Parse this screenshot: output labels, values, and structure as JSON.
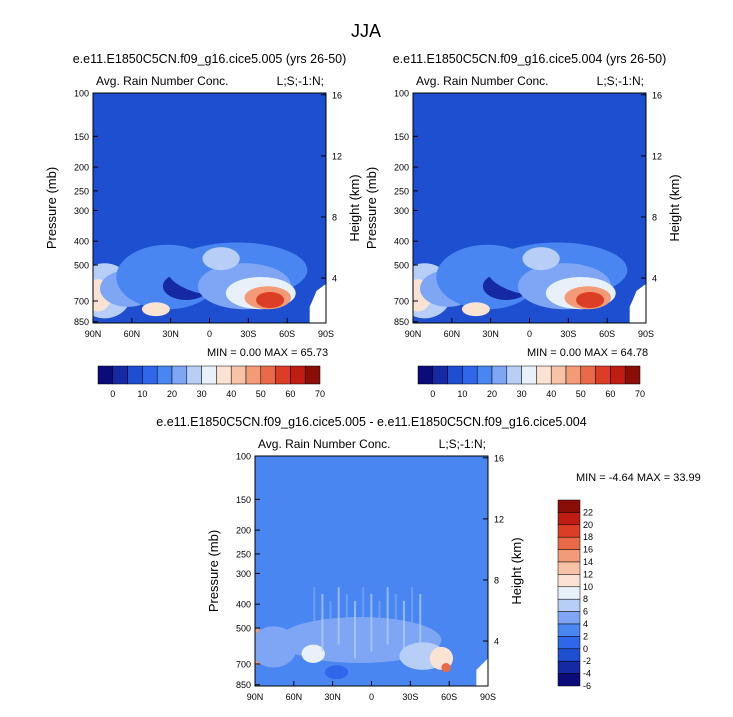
{
  "figure": {
    "title": "JJA"
  },
  "colors": {
    "fill_scale": [
      "#0b0c7a",
      "#1429a3",
      "#1f4fd1",
      "#2f66ea",
      "#4a86f2",
      "#7ea6f4",
      "#b7cff7",
      "#e8f0fa",
      "#fbe3d4",
      "#f7c2a6",
      "#f39a76",
      "#ea6a48",
      "#dc3d25",
      "#c01c12",
      "#8b0d08"
    ],
    "diff_scale": [
      "#0b0c7a",
      "#1429a3",
      "#1f4fd1",
      "#2f66ea",
      "#4a86f2",
      "#7ea6f4",
      "#b7cff7",
      "#e8f0fa",
      "#fbe3d4",
      "#f7c2a6",
      "#f39a76",
      "#ea6a48",
      "#dc3d25",
      "#c01c12",
      "#8b0d08"
    ]
  },
  "chart_data": [
    {
      "type": "heatmap",
      "title": "e.e11.E1850C5CN.f09_g16.cice5.005 (yrs 26-50)",
      "left_label": "Avg. Rain Number Conc.",
      "right_label": "L;S;-1:N;",
      "ylabel": "Pressure (mb)",
      "y2label": "Height (km)",
      "x_ticks": [
        "90N",
        "60N",
        "30N",
        "0",
        "30S",
        "60S",
        "90S"
      ],
      "y_ticks": [
        "100",
        "150",
        "200",
        "250",
        "300",
        "400",
        "500",
        "700",
        "850"
      ],
      "y2_ticks": [
        "16",
        "12",
        "8",
        "4"
      ],
      "stats": "MIN =   0.00   MAX =  65.73",
      "min": 0.0,
      "max": 65.73,
      "colorbar_ticks": [
        "0",
        "10",
        "20",
        "30",
        "40",
        "50",
        "60",
        "70"
      ]
    },
    {
      "type": "heatmap",
      "title": "e.e11.E1850C5CN.f09_g16.cice5.004 (yrs 26-50)",
      "left_label": "Avg. Rain Number Conc.",
      "right_label": "L;S;-1:N;",
      "ylabel": "Pressure (mb)",
      "y2label": "Height (km)",
      "x_ticks": [
        "90N",
        "60N",
        "30N",
        "0",
        "30S",
        "60S",
        "90S"
      ],
      "y_ticks": [
        "100",
        "150",
        "200",
        "250",
        "300",
        "400",
        "500",
        "700",
        "850"
      ],
      "y2_ticks": [
        "16",
        "12",
        "8",
        "4"
      ],
      "stats": "MIN =   0.00   MAX =  64.78",
      "min": 0.0,
      "max": 64.78,
      "colorbar_ticks": [
        "0",
        "10",
        "20",
        "30",
        "40",
        "50",
        "60",
        "70"
      ]
    },
    {
      "type": "heatmap",
      "title": "e.e11.E1850C5CN.f09_g16.cice5.005 - e.e11.E1850C5CN.f09_g16.cice5.004",
      "left_label": "Avg. Rain Number Conc.",
      "right_label": "L;S;-1:N;",
      "ylabel": "Pressure (mb)",
      "y2label": "Height (km)",
      "x_ticks": [
        "90N",
        "60N",
        "30N",
        "0",
        "30S",
        "60S",
        "90S"
      ],
      "y_ticks": [
        "100",
        "150",
        "200",
        "250",
        "300",
        "400",
        "500",
        "700",
        "850"
      ],
      "y2_ticks": [
        "16",
        "12",
        "8",
        "4"
      ],
      "stats": "MIN =  -4.64   MAX =  33.99",
      "min": -4.64,
      "max": 33.99,
      "colorbar_ticks": [
        "22",
        "20",
        "18",
        "16",
        "14",
        "12",
        "10",
        "8",
        "6",
        "4",
        "2",
        "0",
        "-2",
        "-4",
        "-6"
      ]
    }
  ]
}
